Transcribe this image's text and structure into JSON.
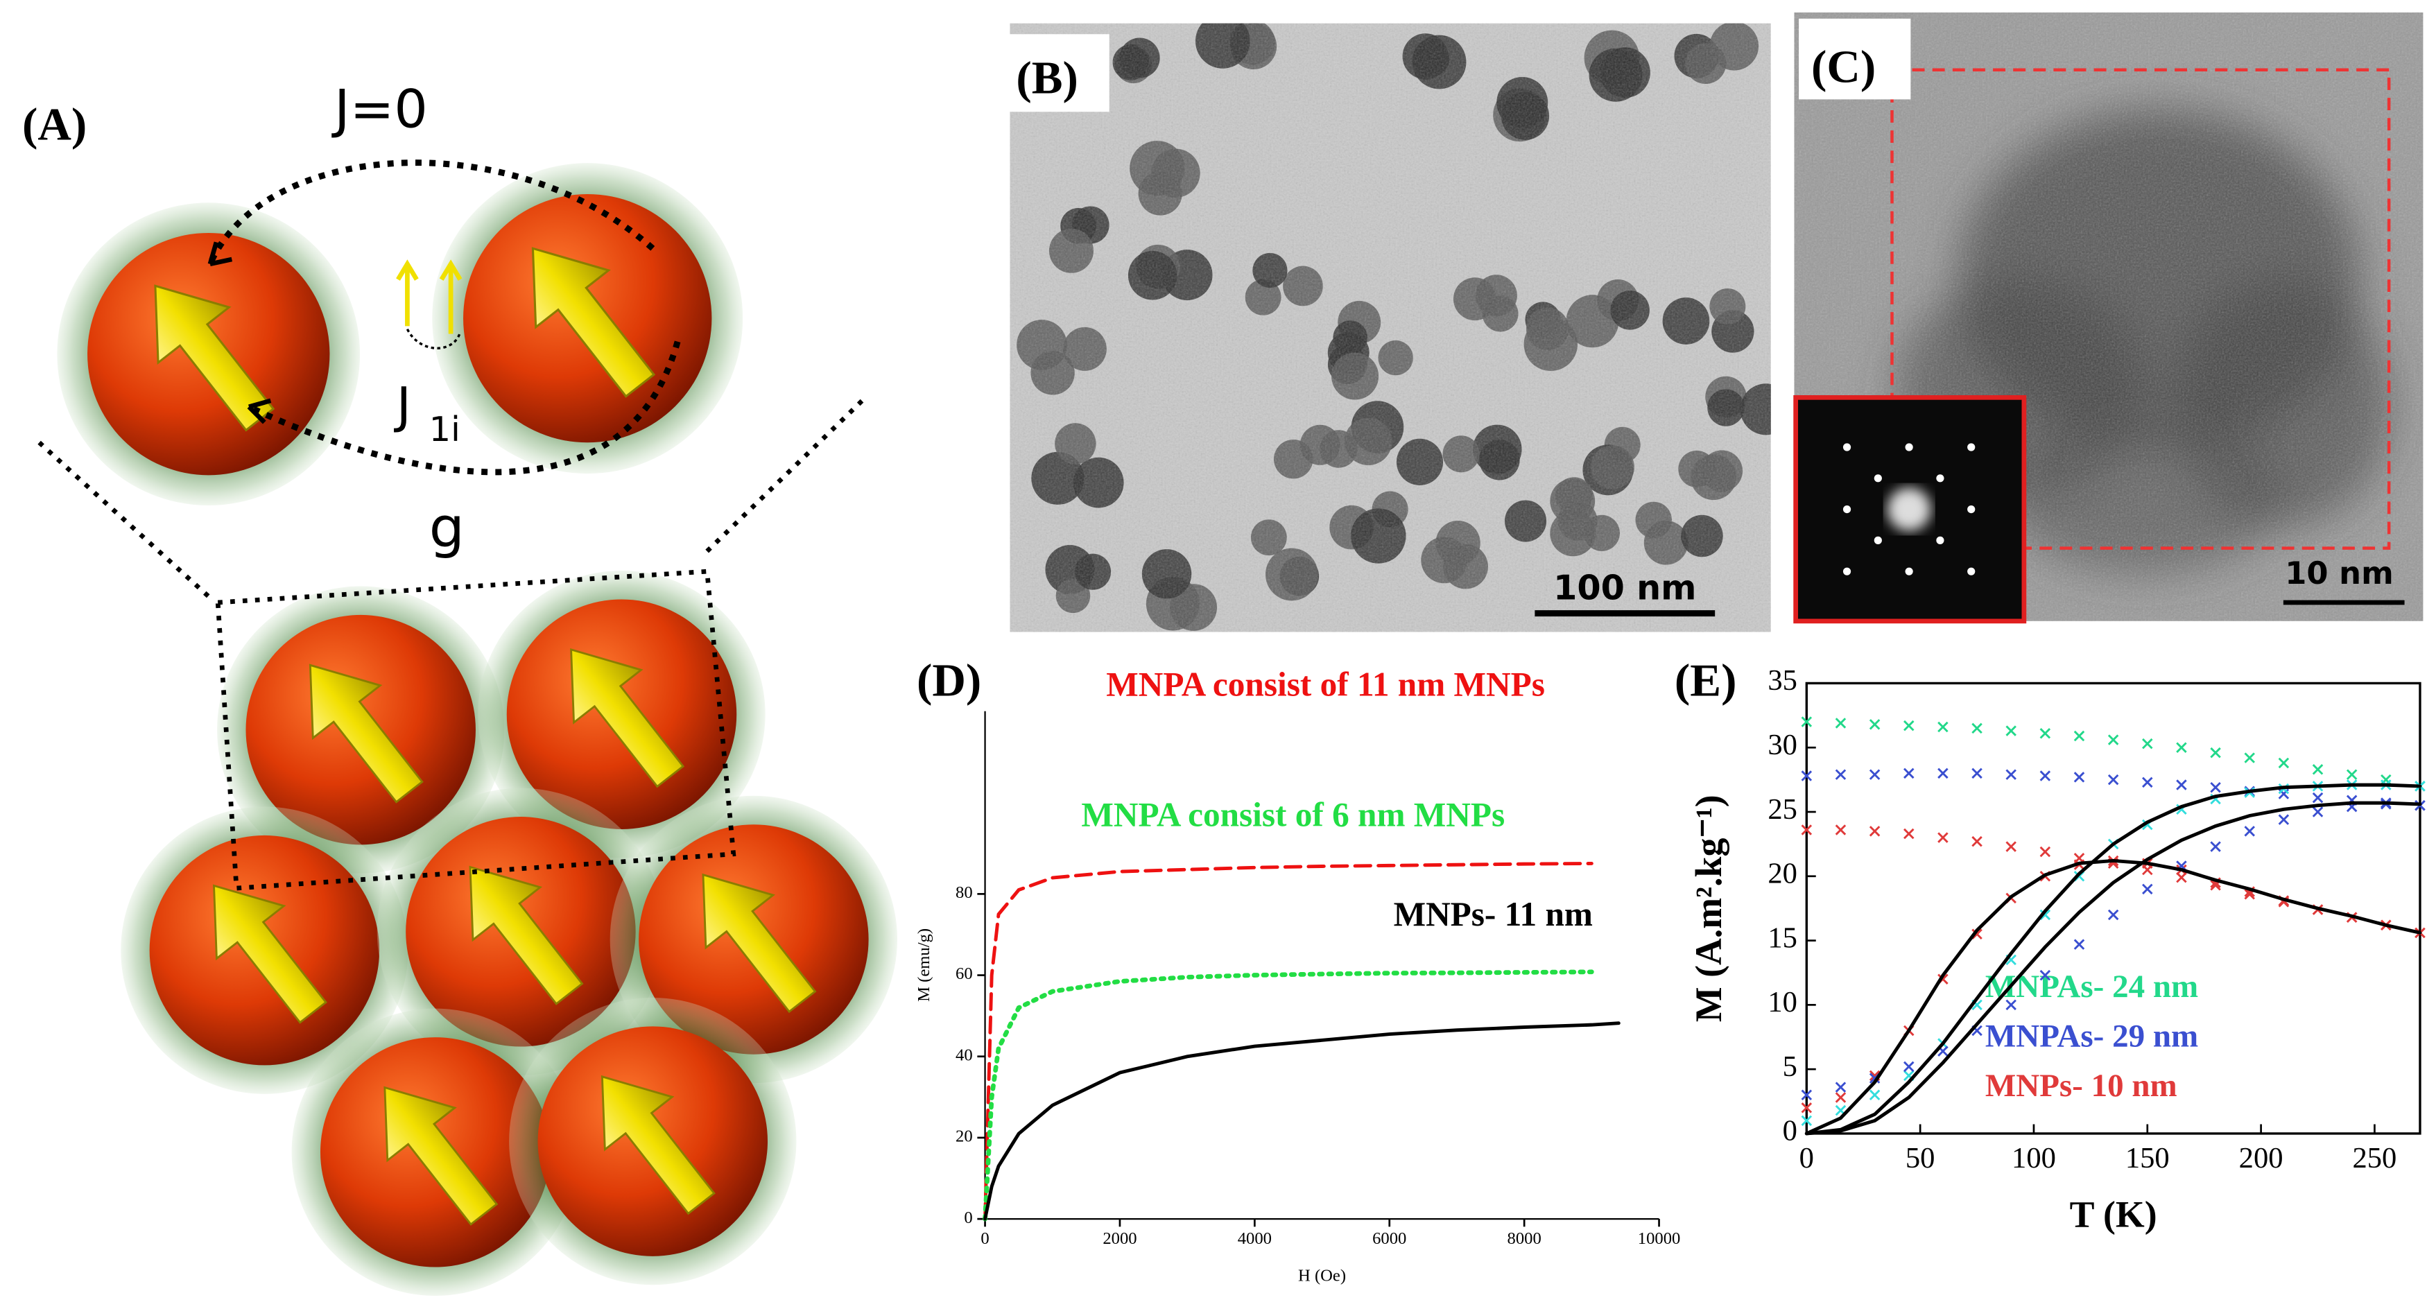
{
  "panels": {
    "a": {
      "label": "(A)",
      "j0": "J=0",
      "j1i": "J",
      "j1i_sub": "1i",
      "g": "g"
    },
    "b": {
      "label": "(B)",
      "scale": "100 nm"
    },
    "c": {
      "label": "(C)",
      "scale": "10 nm"
    }
  },
  "chart_data": [
    {
      "type": "line",
      "panel_label": "(D)",
      "xlabel": "H (Oe)",
      "ylabel": "M (emu/g)",
      "x": [
        0,
        100,
        200,
        500,
        1000,
        2000,
        3000,
        4000,
        5000,
        6000,
        7000,
        8000,
        9000,
        9400
      ],
      "xlim": [
        0,
        10000
      ],
      "xticks": [
        0,
        2000,
        4000,
        6000,
        8000,
        10000
      ],
      "ylim": [
        0,
        125
      ],
      "yticks": [
        0,
        20,
        40,
        60,
        80
      ],
      "series": [
        {
          "name": "MNPA consist of 11 nm MNPs",
          "color": "#ee1111",
          "dash": "dashed",
          "values": [
            0,
            60,
            75,
            81,
            84,
            85.5,
            86,
            86.5,
            86.8,
            87,
            87.2,
            87.4,
            87.5,
            null
          ]
        },
        {
          "name": "MNPA consist of 6 nm MNPs",
          "color": "#22dd44",
          "dash": "dotted",
          "values": [
            0,
            30,
            42,
            52,
            56,
            58.5,
            59.5,
            60,
            60.3,
            60.5,
            60.6,
            60.7,
            60.8,
            null
          ]
        },
        {
          "name": "MNPs- 11 nm",
          "color": "#000000",
          "dash": "solid",
          "values": [
            0,
            8,
            13,
            21,
            28,
            36,
            40,
            42.5,
            44,
            45.5,
            46.5,
            47.2,
            47.8,
            48.2
          ]
        }
      ]
    },
    {
      "type": "line",
      "panel_label": "(E)",
      "xlabel": "T (K)",
      "ylabel": "M (A.m².kg⁻¹)",
      "x": [
        0,
        15,
        30,
        45,
        60,
        75,
        90,
        105,
        120,
        135,
        150,
        165,
        180,
        195,
        210,
        225,
        240,
        255,
        270
      ],
      "xlim": [
        0,
        270
      ],
      "xticks": [
        0,
        50,
        100,
        150,
        200,
        250
      ],
      "ylim": [
        0,
        35
      ],
      "yticks": [
        0,
        5,
        10,
        15,
        20,
        25,
        30,
        35
      ],
      "series": [
        {
          "name": "MNPAs- 24 nm",
          "color": "#22d88a",
          "style": "x",
          "values": [
            32,
            31.9,
            31.8,
            31.7,
            31.6,
            31.5,
            31.3,
            31.1,
            30.9,
            30.6,
            30.3,
            30,
            29.6,
            29.2,
            28.8,
            28.3,
            27.9,
            27.5,
            27
          ]
        },
        {
          "name": "MNPAs- 29 nm",
          "color": "#3a4fd0",
          "style": "x",
          "values": [
            27.8,
            27.9,
            27.9,
            28,
            28,
            28,
            27.9,
            27.8,
            27.7,
            27.5,
            27.3,
            27.1,
            26.9,
            26.6,
            26.4,
            26.1,
            25.9,
            25.7,
            25.5
          ]
        },
        {
          "name": "MNPs- 10 nm",
          "color": "#e03a3a",
          "style": "x",
          "values": [
            23.6,
            23.6,
            23.5,
            23.3,
            23,
            22.7,
            22.3,
            21.9,
            21.4,
            21,
            20.5,
            19.9,
            19.3,
            18.6,
            18,
            17.4,
            16.8,
            16.2,
            15.6
          ]
        },
        {
          "color": "#e03a3a",
          "style": "x",
          "values": [
            2,
            2.8,
            4.5,
            8,
            12,
            15.5,
            18.3,
            20,
            20.9,
            21.2,
            21,
            20.5,
            19.5,
            18.8,
            18.1,
            17.4,
            16.8,
            16.2,
            15.6
          ]
        },
        {
          "color": "#33dddd",
          "style": "x",
          "values": [
            1,
            1.8,
            3,
            4.5,
            7,
            10,
            13.5,
            17,
            20,
            22.5,
            24,
            25.2,
            26,
            26.5,
            26.8,
            27,
            27.1,
            27.1,
            27
          ]
        },
        {
          "color": "#3a4fd0",
          "style": "x",
          "values": [
            3,
            3.6,
            4.3,
            5.2,
            6.4,
            8,
            10,
            12.3,
            14.7,
            17,
            19,
            20.8,
            22.3,
            23.5,
            24.4,
            25,
            25.4,
            25.6,
            25.5
          ]
        },
        {
          "color": "#000000",
          "style": "line",
          "values": [
            0,
            1.2,
            4,
            8,
            12.3,
            15.8,
            18.4,
            20.1,
            21,
            21.2,
            21,
            20.5,
            19.7,
            19,
            18.2,
            17.5,
            16.9,
            16.2,
            15.6
          ]
        },
        {
          "color": "#000000",
          "style": "line",
          "values": [
            0,
            0.3,
            1.5,
            4,
            7,
            10.5,
            14,
            17.3,
            20.2,
            22.5,
            24.2,
            25.4,
            26.2,
            26.6,
            26.9,
            27,
            27.1,
            27.1,
            27
          ]
        },
        {
          "color": "#000000",
          "style": "line",
          "values": [
            0,
            0.2,
            1,
            2.8,
            5.5,
            8.5,
            11.5,
            14.5,
            17.2,
            19.5,
            21.3,
            22.8,
            23.9,
            24.7,
            25.2,
            25.5,
            25.7,
            25.7,
            25.6
          ]
        }
      ]
    }
  ]
}
